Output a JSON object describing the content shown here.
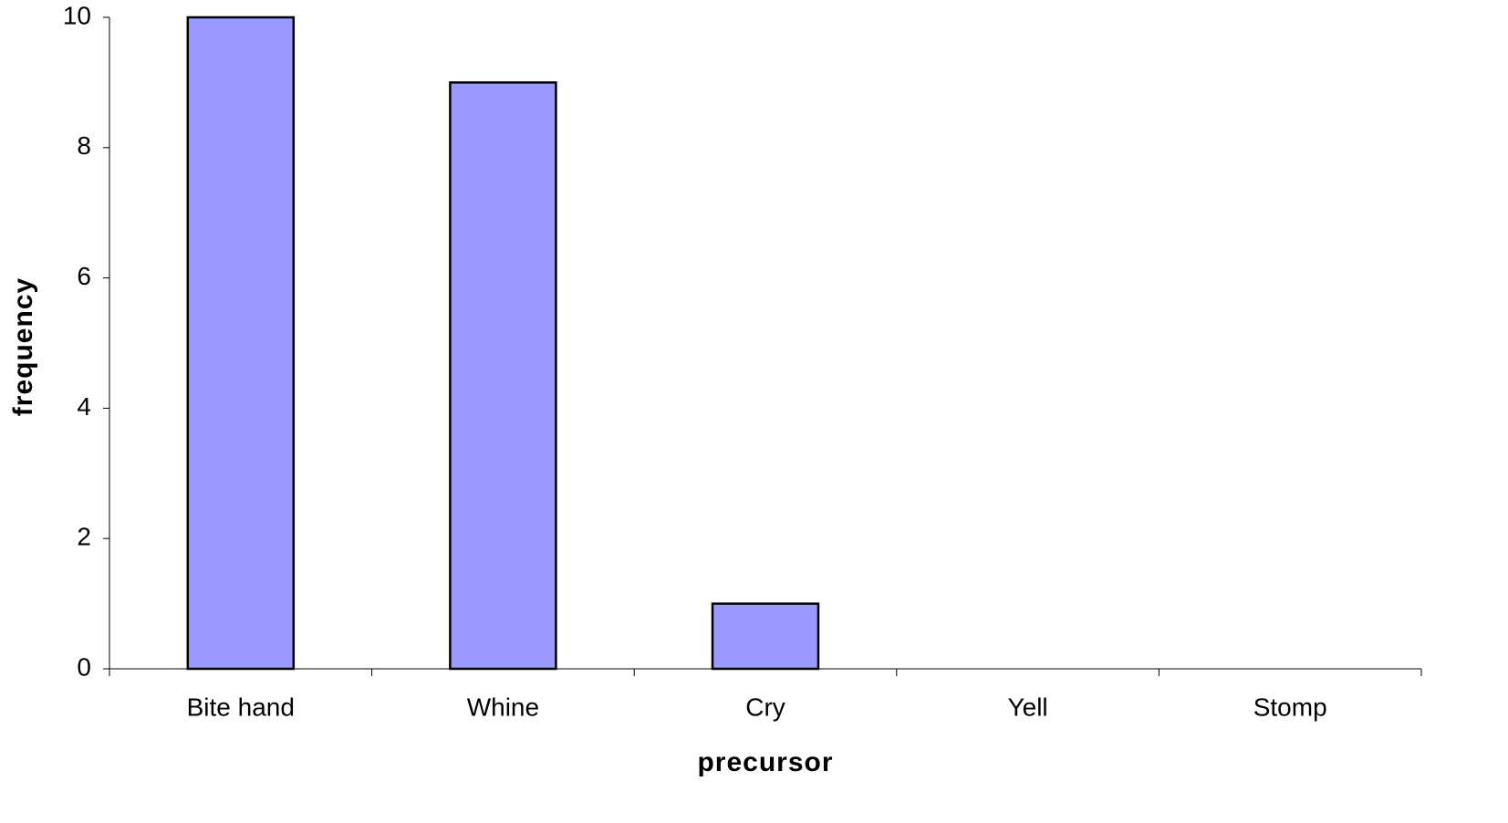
{
  "chart_data": {
    "type": "bar",
    "x_label": "precursor",
    "y_label": "frequency",
    "categories": [
      "Bite hand",
      "Whine",
      "Cry",
      "Yell",
      "Stomp"
    ],
    "values": [
      10,
      9,
      1,
      0,
      0
    ],
    "color": "#9999ff",
    "ylim": [
      0,
      10
    ],
    "yticks": [
      0,
      2,
      4,
      6,
      8,
      10
    ],
    "grid": false
  }
}
